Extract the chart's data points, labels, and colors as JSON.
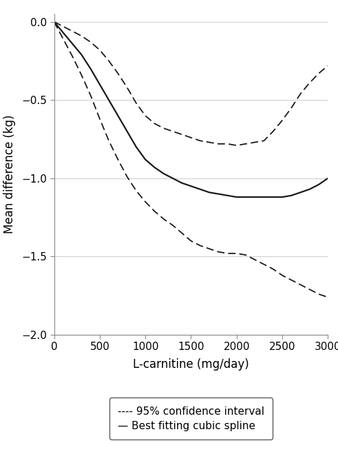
{
  "title": "",
  "xlabel": "L-carnitine (mg/day)",
  "ylabel": "Mean difference (kg)",
  "xlim": [
    0,
    3000
  ],
  "ylim": [
    -2.0,
    0.05
  ],
  "xticks": [
    0,
    500,
    1000,
    1500,
    2000,
    2500,
    3000
  ],
  "yticks": [
    0.0,
    -0.5,
    -1.0,
    -1.5,
    -2.0
  ],
  "spline_x": [
    0,
    100,
    200,
    300,
    400,
    500,
    600,
    700,
    800,
    900,
    1000,
    1100,
    1200,
    1300,
    1400,
    1500,
    1600,
    1700,
    1800,
    1900,
    2000,
    2100,
    2200,
    2300,
    2400,
    2500,
    2600,
    2700,
    2800,
    2900,
    3000
  ],
  "spline_y": [
    0.0,
    -0.07,
    -0.14,
    -0.21,
    -0.3,
    -0.4,
    -0.5,
    -0.6,
    -0.7,
    -0.8,
    -0.88,
    -0.93,
    -0.97,
    -1.0,
    -1.03,
    -1.05,
    -1.07,
    -1.09,
    -1.1,
    -1.11,
    -1.12,
    -1.12,
    -1.12,
    -1.12,
    -1.12,
    -1.12,
    -1.11,
    -1.09,
    -1.07,
    -1.04,
    -1.0
  ],
  "ci_upper_x": [
    0,
    100,
    200,
    300,
    400,
    500,
    600,
    700,
    800,
    900,
    1000,
    1100,
    1200,
    1300,
    1400,
    1500,
    1600,
    1700,
    1800,
    1900,
    2000,
    2100,
    2200,
    2300,
    2400,
    2500,
    2600,
    2700,
    2800,
    2900,
    3000
  ],
  "ci_upper_y": [
    0.0,
    -0.03,
    -0.06,
    -0.09,
    -0.13,
    -0.18,
    -0.25,
    -0.33,
    -0.42,
    -0.52,
    -0.6,
    -0.65,
    -0.68,
    -0.7,
    -0.72,
    -0.74,
    -0.76,
    -0.77,
    -0.78,
    -0.78,
    -0.79,
    -0.78,
    -0.77,
    -0.76,
    -0.7,
    -0.63,
    -0.55,
    -0.46,
    -0.39,
    -0.33,
    -0.28
  ],
  "ci_lower_x": [
    0,
    100,
    200,
    300,
    400,
    500,
    600,
    700,
    800,
    900,
    1000,
    1100,
    1200,
    1300,
    1400,
    1500,
    1600,
    1700,
    1800,
    1900,
    2000,
    2100,
    2200,
    2300,
    2400,
    2500,
    2600,
    2700,
    2800,
    2900,
    3000
  ],
  "ci_lower_y": [
    0.0,
    -0.11,
    -0.22,
    -0.34,
    -0.47,
    -0.62,
    -0.76,
    -0.88,
    -0.99,
    -1.08,
    -1.15,
    -1.21,
    -1.26,
    -1.3,
    -1.35,
    -1.4,
    -1.43,
    -1.45,
    -1.47,
    -1.48,
    -1.48,
    -1.49,
    -1.52,
    -1.55,
    -1.58,
    -1.62,
    -1.65,
    -1.68,
    -1.71,
    -1.74,
    -1.76
  ],
  "line_color": "#1a1a1a",
  "ci_color": "#1a1a1a",
  "bg_color": "#ffffff",
  "grid_color": "#d0d0d0",
  "spine_color": "#888888",
  "legend_label1": "---- 95% confidence interval",
  "legend_label2": "— Best fitting cubic spline",
  "tick_fontsize": 11,
  "label_fontsize": 12,
  "legend_fontsize": 11
}
